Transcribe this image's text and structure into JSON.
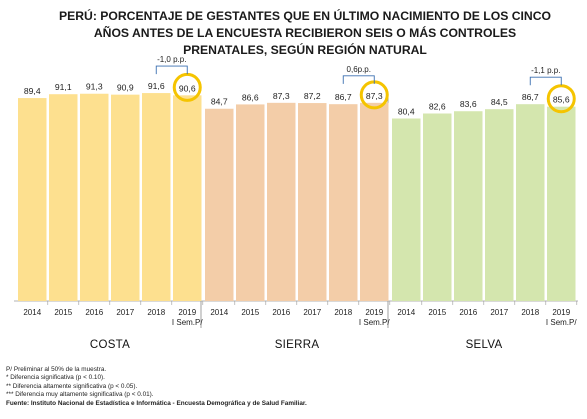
{
  "title_lines": [
    "PERÚ: PORCENTAJE DE GESTANTES QUE EN ÚLTIMO NACIMIENTO DE LOS CINCO",
    "AÑOS ANTES DE LA ENCUESTA RECIBIERON SEIS O MÁS CONTROLES",
    "PRENATALES, SEGÚN REGIÓN NATURAL"
  ],
  "notes": [
    "P/ Preliminar al 50% de la muestra.",
    "*   Diferencia significativa (p < 0.10).",
    "**  Diferencia altamente significativa (p < 0.05).",
    "*** Diferencia muy altamente significativa (p < 0.01)."
  ],
  "source": "Fuente: Instituto Nacional de Estadística e Informática - Encuesta Demográfica y de Salud Familiar.",
  "chart_data": {
    "type": "bar",
    "ylim": [
      0,
      100
    ],
    "grid": false,
    "x_labels": [
      "2014",
      "2015",
      "2016",
      "2017",
      "2018",
      "2019"
    ],
    "last_label_line2": "I Sem.P/",
    "highlight_color": "#f5c400",
    "groups": [
      {
        "name": "COSTA",
        "color": "#fde08f",
        "values": [
          89.4,
          91.1,
          91.3,
          90.9,
          91.6,
          90.6
        ],
        "value_labels": [
          "89,4",
          "91,1",
          "91,3",
          "90,9",
          "91,6",
          "90,6"
        ],
        "change_label": "-1,0 p.p."
      },
      {
        "name": "SIERRA",
        "color": "#f3cda8",
        "values": [
          84.7,
          86.6,
          87.3,
          87.2,
          86.7,
          87.3
        ],
        "value_labels": [
          "84,7",
          "86,6",
          "87,3",
          "87,2",
          "86,7",
          "87,3"
        ],
        "change_label": "0,6p.p."
      },
      {
        "name": "SELVA",
        "color": "#d4e6ae",
        "values": [
          80.4,
          82.6,
          83.6,
          84.5,
          86.7,
          85.6
        ],
        "value_labels": [
          "80,4",
          "82,6",
          "83,6",
          "84,5",
          "86,7",
          "85,6"
        ],
        "change_label": "-1,1 p.p."
      }
    ]
  }
}
